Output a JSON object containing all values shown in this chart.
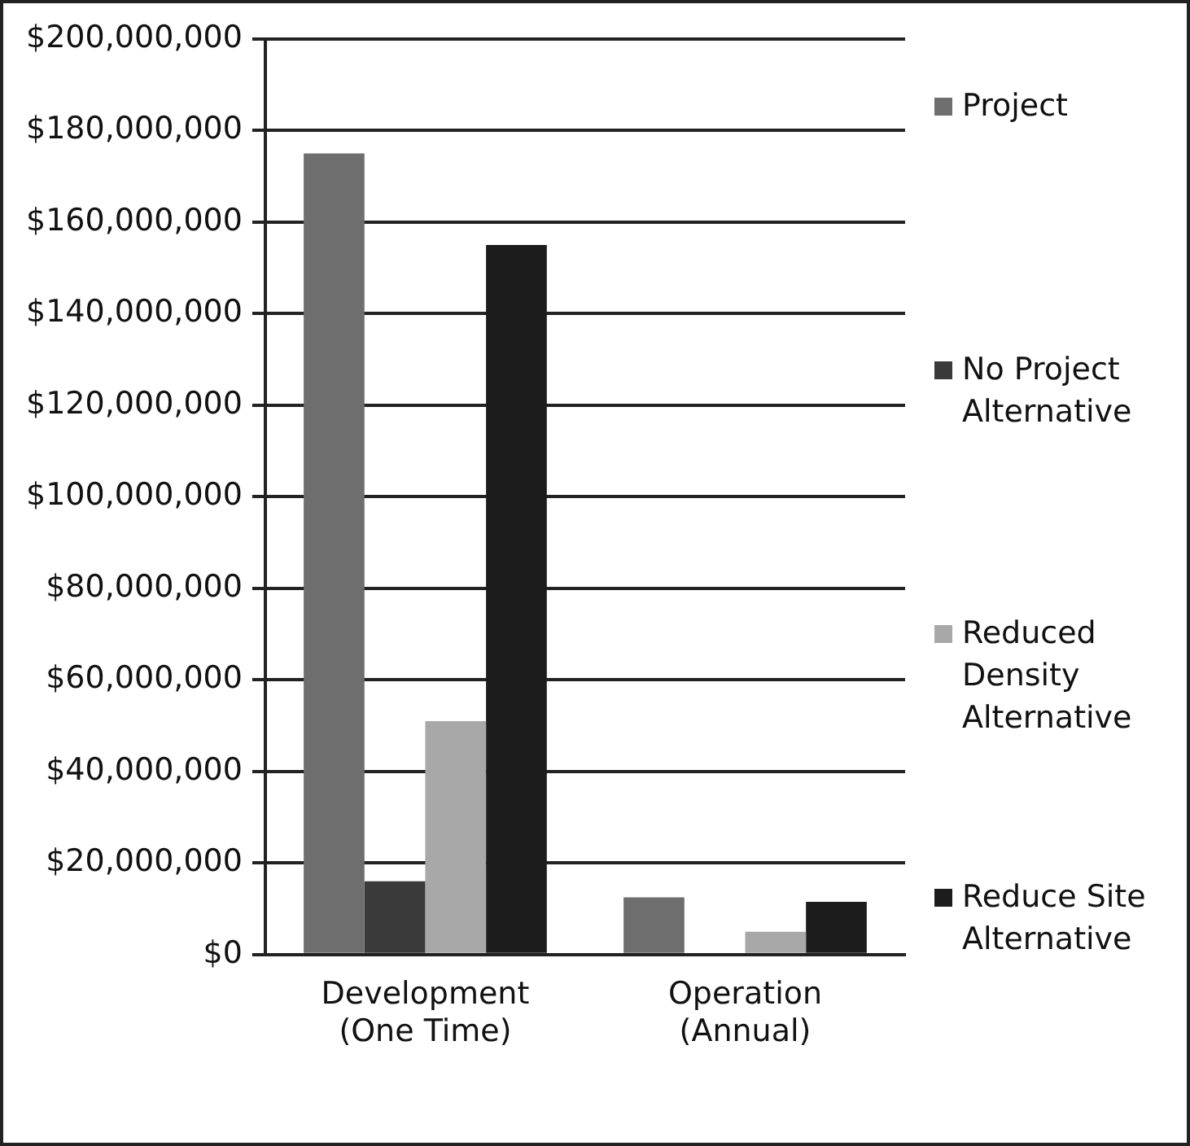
{
  "chart_data": {
    "type": "bar",
    "categories": [
      "Development\n(One Time)",
      "Operation\n(Annual)"
    ],
    "series": [
      {
        "name": "Project",
        "color": "#6e6e6e",
        "values": [
          175000000,
          12500000
        ]
      },
      {
        "name": "No Project Alternative",
        "color": "#3a3a3a",
        "values": [
          16000000,
          0
        ]
      },
      {
        "name": "Reduced Density Alternative",
        "color": "#a8a8a8",
        "values": [
          51000000,
          5000000
        ]
      },
      {
        "name": "Reduce Site Alternative",
        "color": "#1c1c1c",
        "values": [
          155000000,
          11500000
        ]
      }
    ],
    "ylim": [
      0,
      200000000
    ],
    "yticks": [
      {
        "value": 0,
        "label": "$0"
      },
      {
        "value": 20000000,
        "label": "$20,000,000"
      },
      {
        "value": 40000000,
        "label": "$40,000,000"
      },
      {
        "value": 60000000,
        "label": "$60,000,000"
      },
      {
        "value": 80000000,
        "label": "$80,000,000"
      },
      {
        "value": 100000000,
        "label": "$100,000,000"
      },
      {
        "value": 120000000,
        "label": "$120,000,000"
      },
      {
        "value": 140000000,
        "label": "$140,000,000"
      },
      {
        "value": 160000000,
        "label": "$160,000,000"
      },
      {
        "value": 180000000,
        "label": "$180,000,000"
      },
      {
        "value": 200000000,
        "label": "$200,000,000"
      }
    ],
    "grid": "y",
    "legend": "right"
  }
}
